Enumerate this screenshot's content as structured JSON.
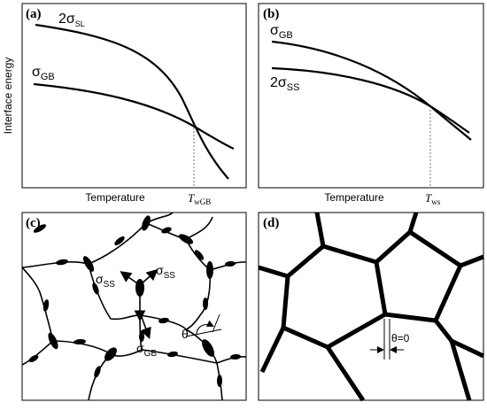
{
  "panels": {
    "a": {
      "label": "(a)",
      "ylabel": "Interface energy",
      "xlabel": "Temperature",
      "curve_top": "2σ",
      "curve_top_sub": "SL",
      "curve_bottom": "σ",
      "curve_bottom_sub": "GB",
      "t_mark": "T",
      "t_mark_sub": "wGB"
    },
    "b": {
      "label": "(b)",
      "xlabel": "Temperature",
      "curve_top": "σ",
      "curve_top_sub": "GB",
      "curve_bottom": "2σ",
      "curve_bottom_sub": "SS",
      "t_mark": "T",
      "t_mark_sub": "ws"
    },
    "c": {
      "label": "(c)",
      "sigma_ss_left": "σ",
      "sigma_ss_left_sub": "SS",
      "sigma_ss_right": "σ",
      "sigma_ss_right_sub": "SS",
      "sigma_gb": "σ",
      "sigma_gb_sub": "GB",
      "theta": "θ"
    },
    "d": {
      "label": "(d)",
      "theta_eq": "θ=0"
    }
  }
}
